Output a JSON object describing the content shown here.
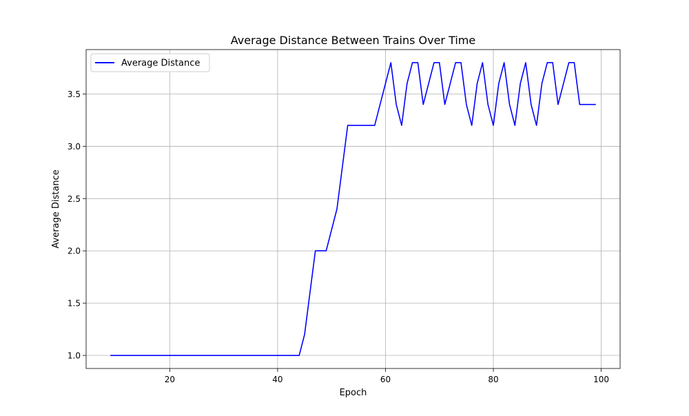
{
  "chart_data": {
    "type": "line",
    "title": "Average Distance Between Trains Over Time",
    "xlabel": "Epoch",
    "ylabel": "Average Distance",
    "xlim": [
      4.5,
      103.5
    ],
    "ylim": [
      0.875,
      3.925
    ],
    "xticks": [
      20,
      40,
      60,
      80,
      100
    ],
    "yticks": [
      1.0,
      1.5,
      2.0,
      2.5,
      3.0,
      3.5
    ],
    "xtick_labels": [
      "20",
      "40",
      "60",
      "80",
      "100"
    ],
    "ytick_labels": [
      "1.0",
      "1.5",
      "2.0",
      "2.5",
      "3.0",
      "3.5"
    ],
    "grid": true,
    "legend_position": "top-left",
    "series": [
      {
        "name": "Average Distance",
        "color": "#0000ff",
        "x": [
          9,
          44,
          45,
          47,
          49,
          51,
          53,
          58,
          61,
          62,
          63,
          64,
          65,
          66,
          67,
          69,
          70,
          71,
          73,
          74,
          75,
          76,
          77,
          78,
          79,
          80,
          81,
          82,
          83,
          84,
          85,
          86,
          87,
          88,
          89,
          90,
          91,
          92,
          94,
          95,
          96,
          99
        ],
        "y": [
          1.0,
          1.0,
          1.2,
          2.0,
          2.0,
          2.4,
          3.2,
          3.2,
          3.8,
          3.4,
          3.2,
          3.6,
          3.8,
          3.8,
          3.4,
          3.8,
          3.8,
          3.4,
          3.8,
          3.8,
          3.4,
          3.2,
          3.6,
          3.8,
          3.4,
          3.2,
          3.6,
          3.8,
          3.4,
          3.2,
          3.6,
          3.8,
          3.4,
          3.2,
          3.6,
          3.8,
          3.8,
          3.4,
          3.8,
          3.8,
          3.4,
          3.4
        ]
      }
    ]
  }
}
